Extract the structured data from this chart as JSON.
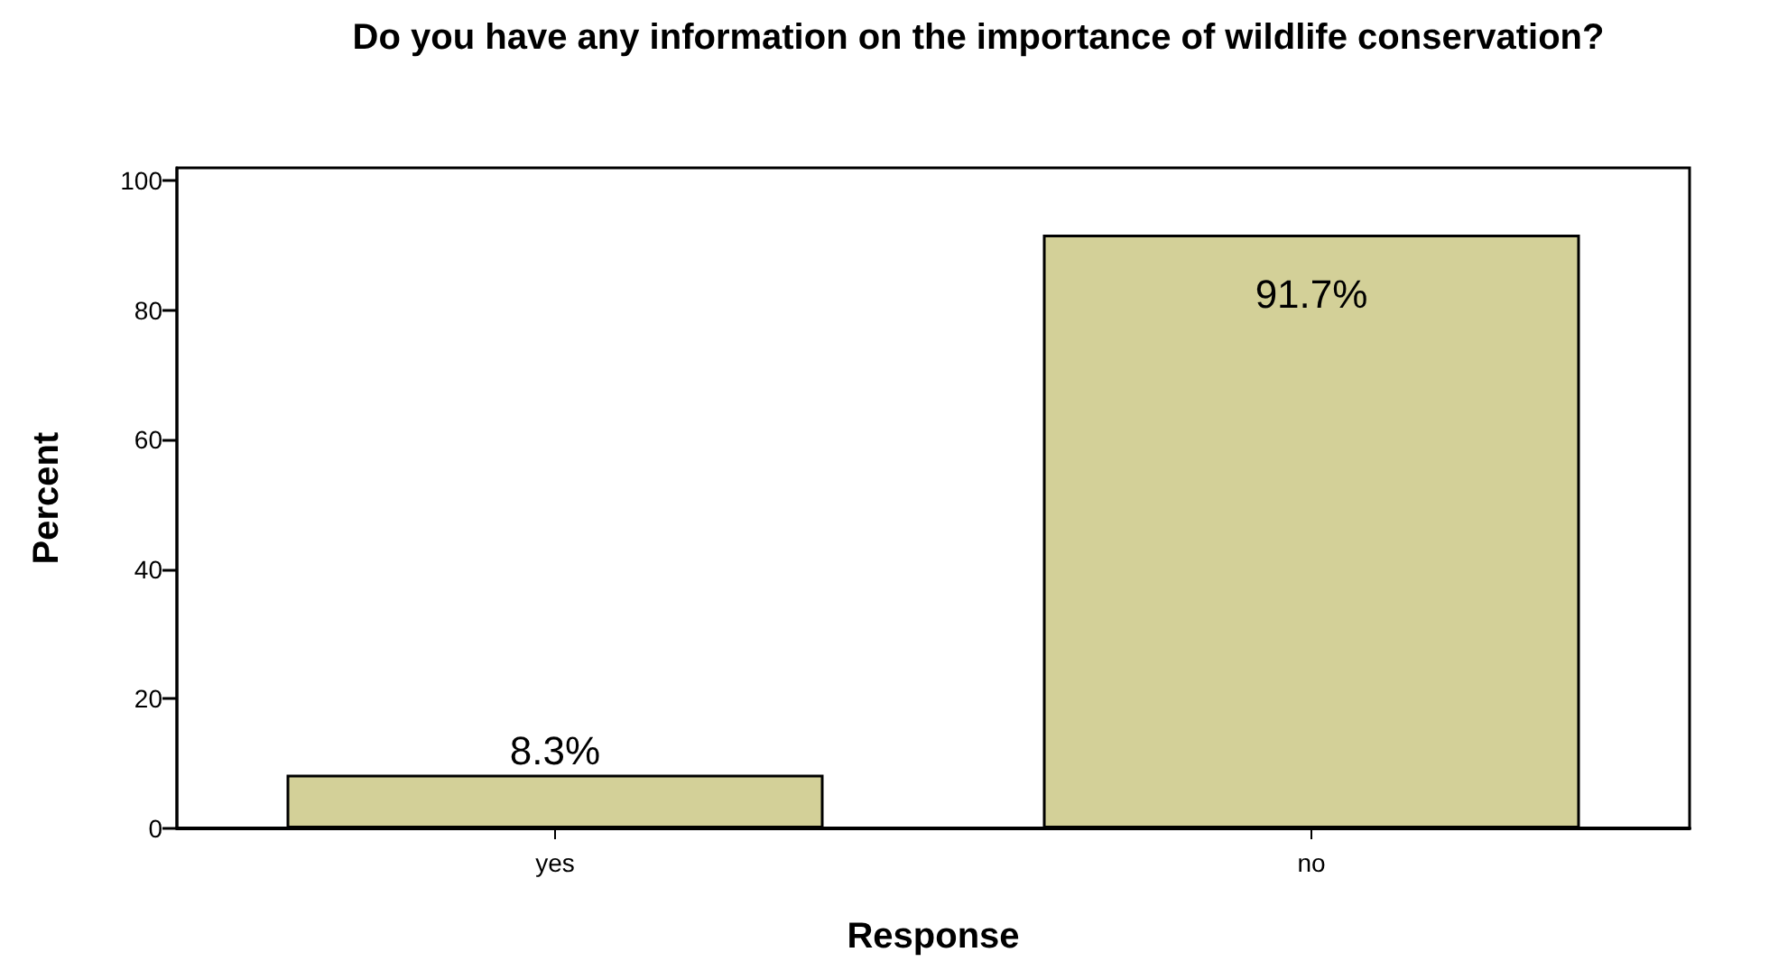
{
  "chart_data": {
    "type": "bar",
    "title": "Do you have any information on the importance of wildlife conservation?",
    "xlabel": "Response",
    "ylabel": "Percent",
    "categories": [
      "yes",
      "no"
    ],
    "values": [
      8.3,
      91.7
    ],
    "value_labels": [
      "8.3%",
      "91.7%"
    ],
    "color": "#d3d098",
    "ylim": [
      0,
      102
    ],
    "yticks": [
      0,
      20,
      40,
      60,
      80,
      100
    ],
    "grid": false
  }
}
